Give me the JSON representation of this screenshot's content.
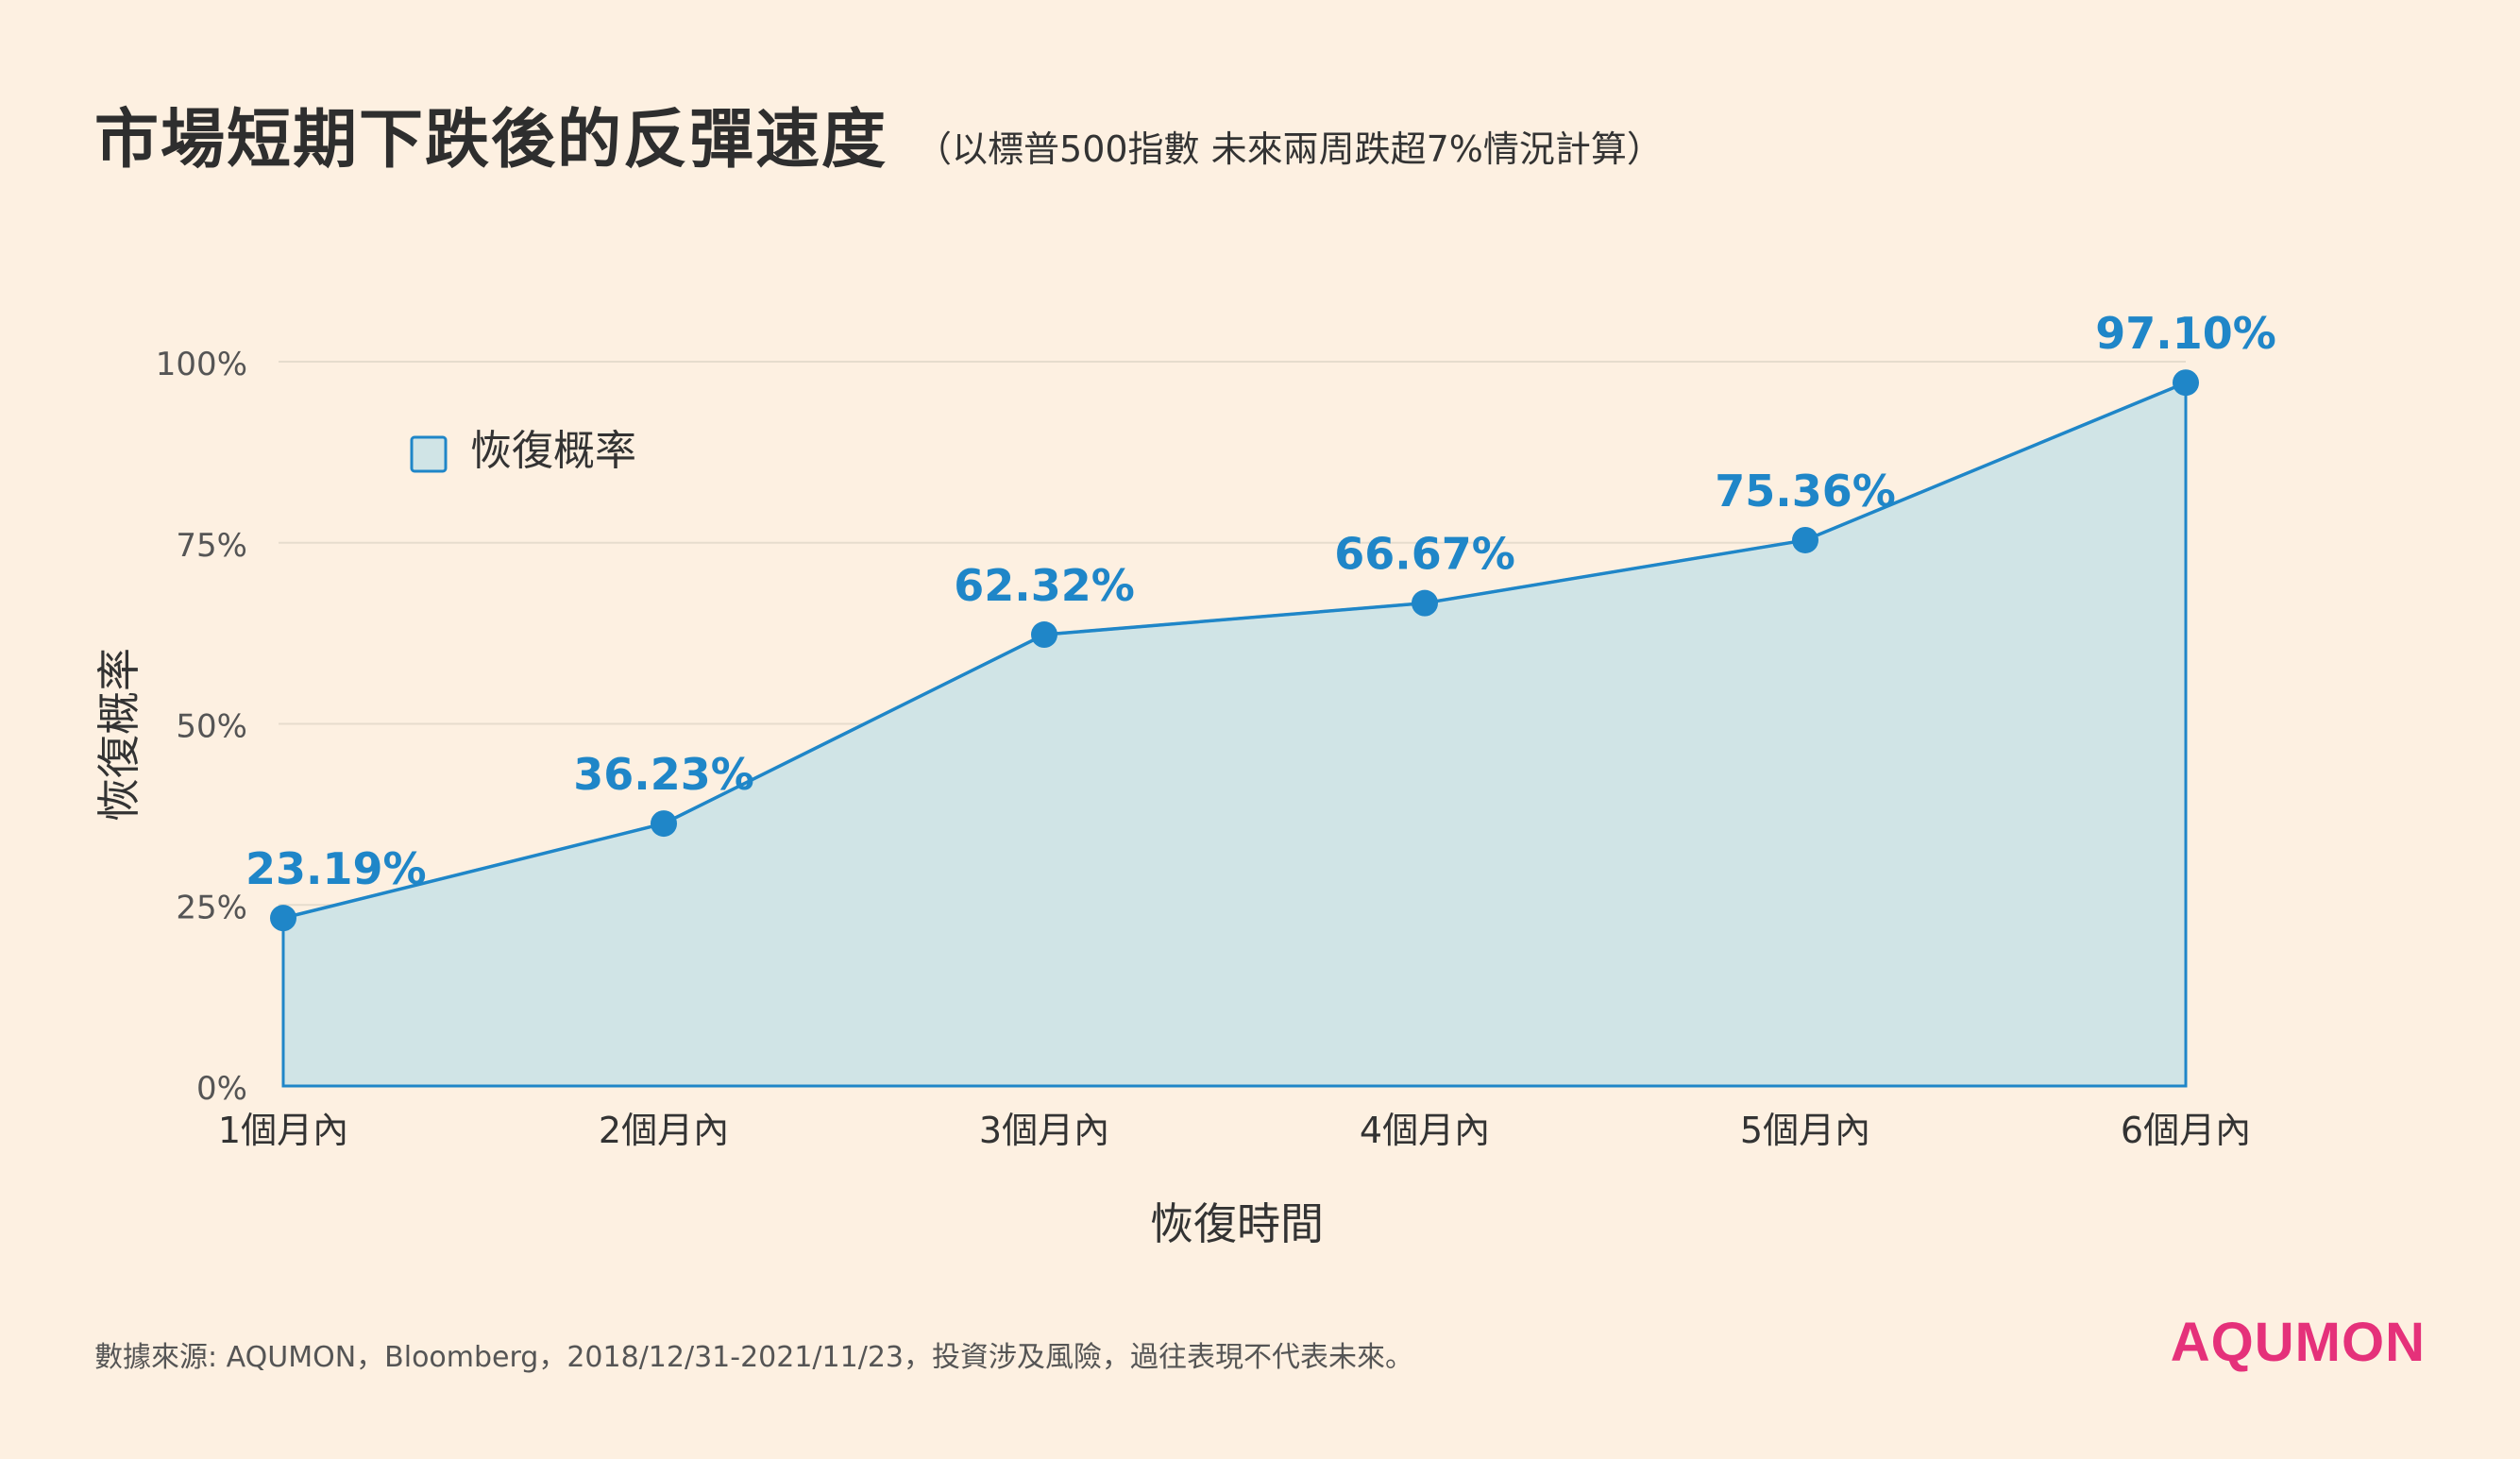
{
  "title": "市場短期下跌後的反彈速度",
  "subtitle": "（以標普500指數 未來兩周跌超7%情況計算）",
  "footer": "數據來源: AQUMON，Bloomberg，2018/12/31-2021/11/23，投資涉及風險，過往表現不代表未來。",
  "brand": "AQUMON",
  "colors": {
    "line": "#1f86c8",
    "area_fill": "#d0e4e6",
    "label": "#1f86c8",
    "grid": "#e6dccd",
    "brand": "#e5317a",
    "background": "#fdf0e1"
  },
  "chart_data": {
    "type": "area",
    "categories": [
      "1個月內",
      "2個月內",
      "3個月內",
      "4個月內",
      "5個月內",
      "6個月內"
    ],
    "series": [
      {
        "name": "恢復概率",
        "values": [
          23.19,
          36.23,
          62.32,
          66.67,
          75.36,
          97.1
        ],
        "labels": [
          "23.19%",
          "36.23%",
          "62.32%",
          "66.67%",
          "75.36%",
          "97.10%"
        ]
      }
    ],
    "xlabel": "恢復時間",
    "ylabel": "恢復概率",
    "ylim": [
      0,
      100
    ],
    "yticks": [
      0,
      25,
      50,
      75,
      100
    ],
    "ytick_labels": [
      "0%",
      "25%",
      "50%",
      "75%",
      "100%"
    ],
    "grid": true,
    "legend": "top-left"
  }
}
